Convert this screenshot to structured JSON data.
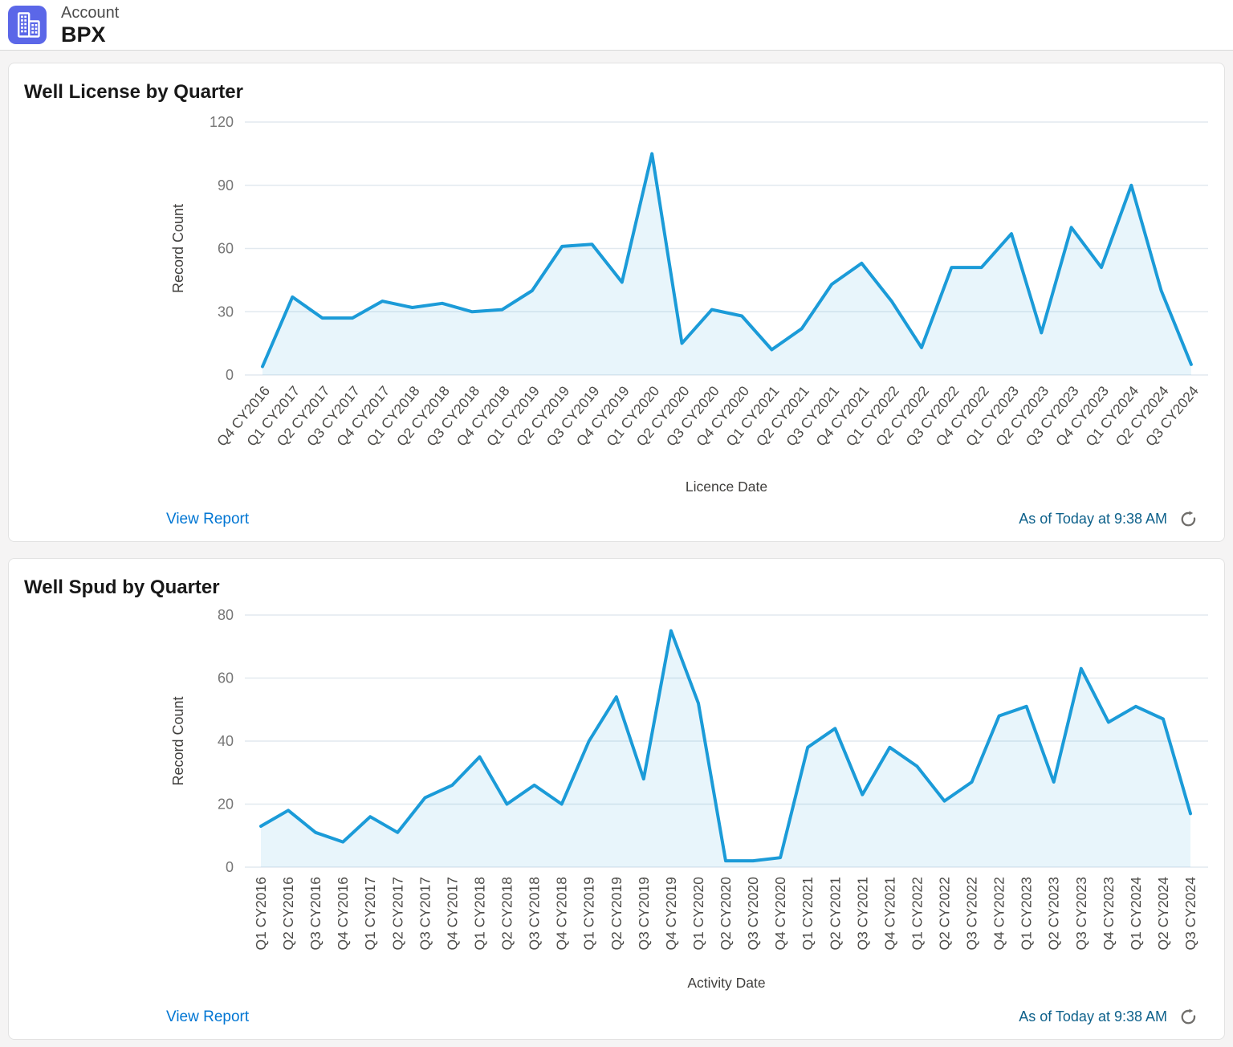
{
  "header": {
    "entity_type": "Account",
    "account_name": "BPX",
    "icon": "account-building-icon",
    "icon_color": "#5B67E8"
  },
  "colors": {
    "line": "#1B9BD8",
    "area_fill": "rgba(27,155,216,0.10)",
    "grid": "#E2E9EF",
    "y_tick": "#767676",
    "x_tick": "#4B4A47",
    "axis_title": "#403F3D",
    "link": "#0176D3",
    "as_of_text": "#0E618B",
    "refresh_icon": "#706E6B"
  },
  "cards": [
    {
      "title": "Well License by Quarter",
      "view_report": "View Report",
      "as_of": "As of Today at 9:38 AM"
    },
    {
      "title": "Well Spud by Quarter",
      "view_report": "View Report",
      "as_of": "As of Today at 9:38 AM"
    }
  ],
  "chart_data": [
    {
      "type": "line",
      "title": "Well License by Quarter",
      "xlabel": "Licence Date",
      "ylabel": "Record Count",
      "ylim": [
        0,
        120
      ],
      "yticks": [
        0,
        30,
        60,
        90,
        120
      ],
      "grid": true,
      "legend": false,
      "x_label_rotation": -50,
      "categories": [
        "Q4 CY2016",
        "Q1 CY2017",
        "Q2 CY2017",
        "Q3 CY2017",
        "Q4 CY2017",
        "Q1 CY2018",
        "Q2 CY2018",
        "Q3 CY2018",
        "Q4 CY2018",
        "Q1 CY2019",
        "Q2 CY2019",
        "Q3 CY2019",
        "Q4 CY2019",
        "Q1 CY2020",
        "Q2 CY2020",
        "Q3 CY2020",
        "Q4 CY2020",
        "Q1 CY2021",
        "Q2 CY2021",
        "Q3 CY2021",
        "Q4 CY2021",
        "Q1 CY2022",
        "Q2 CY2022",
        "Q3 CY2022",
        "Q4 CY2022",
        "Q1 CY2023",
        "Q2 CY2023",
        "Q3 CY2023",
        "Q4 CY2023",
        "Q1 CY2024",
        "Q2 CY2024",
        "Q3 CY2024"
      ],
      "values": [
        4,
        37,
        27,
        27,
        35,
        32,
        34,
        30,
        31,
        40,
        61,
        62,
        44,
        105,
        15,
        31,
        28,
        12,
        22,
        43,
        53,
        35,
        13,
        51,
        51,
        67,
        20,
        70,
        51,
        90,
        40,
        5
      ]
    },
    {
      "type": "line",
      "title": "Well Spud by Quarter",
      "xlabel": "Activity Date",
      "ylabel": "Record Count",
      "ylim": [
        0,
        80
      ],
      "yticks": [
        0,
        20,
        40,
        60,
        80
      ],
      "grid": true,
      "legend": false,
      "x_label_rotation": -90,
      "categories": [
        "Q1 CY2016",
        "Q2 CY2016",
        "Q3 CY2016",
        "Q4 CY2016",
        "Q1 CY2017",
        "Q2 CY2017",
        "Q3 CY2017",
        "Q4 CY2017",
        "Q1 CY2018",
        "Q2 CY2018",
        "Q3 CY2018",
        "Q4 CY2018",
        "Q1 CY2019",
        "Q2 CY2019",
        "Q3 CY2019",
        "Q4 CY2019",
        "Q1 CY2020",
        "Q2 CY2020",
        "Q3 CY2020",
        "Q4 CY2020",
        "Q1 CY2021",
        "Q2 CY2021",
        "Q3 CY2021",
        "Q4 CY2021",
        "Q1 CY2022",
        "Q2 CY2022",
        "Q3 CY2022",
        "Q4 CY2022",
        "Q1 CY2023",
        "Q2 CY2023",
        "Q3 CY2023",
        "Q4 CY2023",
        "Q1 CY2024",
        "Q2 CY2024",
        "Q3 CY2024"
      ],
      "values": [
        13,
        18,
        11,
        8,
        16,
        11,
        22,
        26,
        35,
        20,
        26,
        20,
        40,
        54,
        28,
        75,
        52,
        2,
        2,
        3,
        38,
        44,
        23,
        38,
        32,
        21,
        27,
        48,
        51,
        27,
        63,
        46,
        51,
        47,
        17
      ]
    }
  ]
}
